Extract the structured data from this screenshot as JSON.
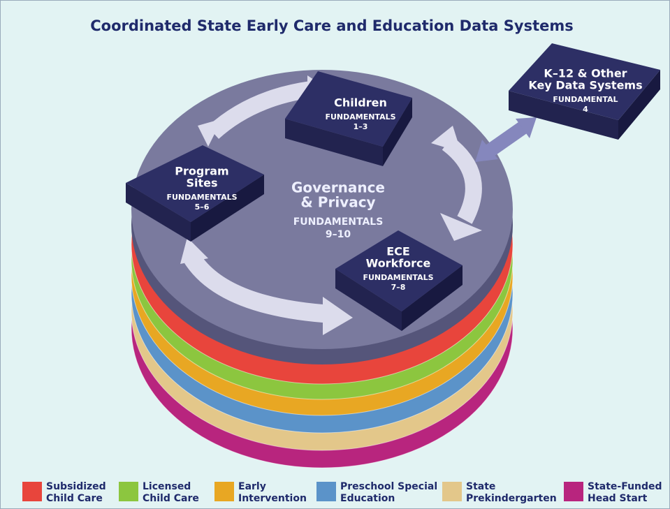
{
  "title": "Coordinated State Early Care and Education Data Systems",
  "center": {
    "lines": [
      "Governance",
      "& Privacy"
    ],
    "fundamentals": "FUNDAMENTALS",
    "range": "9–10"
  },
  "boxes": [
    {
      "lines": [
        "Children"
      ],
      "fundamentals": "FUNDAMENTALS",
      "range": "1–3"
    },
    {
      "lines": [
        "Program",
        "Sites"
      ],
      "fundamentals": "FUNDAMENTALS",
      "range": "5–6"
    },
    {
      "lines": [
        "ECE",
        "Workforce"
      ],
      "fundamentals": "FUNDAMENTALS",
      "range": "7–8"
    },
    {
      "lines": [
        "K–12 & Other",
        "Key Data Systems"
      ],
      "fundamentals": "FUNDAMENTAL",
      "range": "4"
    }
  ],
  "legend": [
    {
      "lines": [
        "Subsidized",
        "Child Care"
      ],
      "color": "#e8453c"
    },
    {
      "lines": [
        "Licensed",
        "Child Care"
      ],
      "color": "#8cc63f"
    },
    {
      "lines": [
        "Early",
        "Intervention"
      ],
      "color": "#e8a723"
    },
    {
      "lines": [
        "Preschool Special",
        "Education"
      ],
      "color": "#5b93c9"
    },
    {
      "lines": [
        "State",
        "Prekindergarten"
      ],
      "color": "#e3c78a"
    },
    {
      "lines": [
        "State-Funded",
        "Head Start"
      ],
      "color": "#b8257e"
    }
  ]
}
